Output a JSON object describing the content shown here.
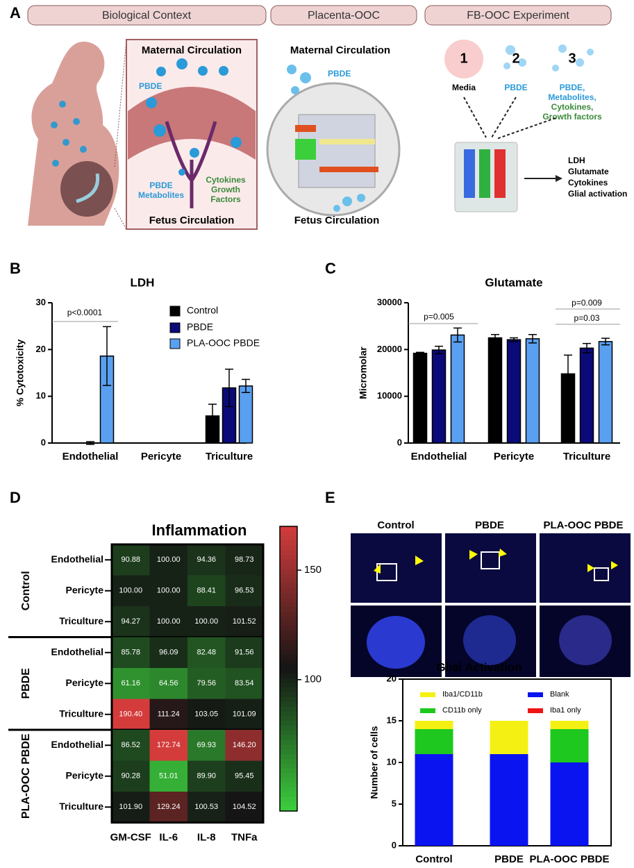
{
  "panel_labels": [
    "A",
    "B",
    "C",
    "D",
    "E"
  ],
  "panel_a": {
    "headers": [
      "Biological Context",
      "Placenta-OOC",
      "FB-OOC Experiment"
    ],
    "biological_context": {
      "top": "Maternal Circulation",
      "pbde": "PBDE",
      "metabolites": [
        "PBDE",
        "Metabolites"
      ],
      "cytokines": [
        "Cytokines",
        "Growth",
        "Factors"
      ],
      "bottom": "Fetus Circulation"
    },
    "placenta_ooc": {
      "top": "Maternal Circulation",
      "pbde": "PBDE",
      "bottom": "Fetus Circulation"
    },
    "fb_ooc": {
      "steps": [
        {
          "number": 1,
          "label": [
            "Media"
          ]
        },
        {
          "number": 2,
          "label": [
            "PBDE"
          ]
        },
        {
          "number": 3,
          "label": [
            "PBDE,",
            "Metabolites,",
            "Cytokines,",
            "Growth factors"
          ]
        }
      ],
      "readouts": [
        "LDH",
        "Glutamate",
        "Cytokines",
        "Glial activation"
      ]
    }
  },
  "panel_e": {
    "image_labels": [
      "Control",
      "PBDE",
      "PLA-OOC PBDE"
    ]
  },
  "chart_data": [
    {
      "type": "bar",
      "title": "LDH",
      "y_label": "% Cytotoxicity",
      "categories": [
        "Endothelial",
        "Pericyte",
        "Triculture"
      ],
      "series": [
        {
          "name": "Control",
          "color": "#000000",
          "values": [
            0,
            0,
            5.8
          ],
          "errors": [
            0,
            0,
            2.5
          ]
        },
        {
          "name": "PBDE",
          "color": "#0a0a78",
          "values": [
            0,
            0,
            11.8
          ],
          "errors": [
            0.3,
            0,
            4.0
          ]
        },
        {
          "name": "PLA-OOC PBDE",
          "color": "#5aa0f0",
          "values": [
            18.6,
            0,
            12.2
          ],
          "errors": [
            6.3,
            0,
            1.4
          ]
        }
      ],
      "ylim": [
        0,
        30
      ],
      "yticks": [
        0,
        10,
        20,
        30
      ],
      "annotations": [
        "p<0.0001"
      ]
    },
    {
      "type": "bar",
      "title": "Glutamate",
      "y_label": "Micromolar",
      "categories": [
        "Endothelial",
        "Pericyte",
        "Triculture"
      ],
      "series": [
        {
          "name": "Control",
          "color": "#000000",
          "values": [
            19200,
            22500,
            14800
          ],
          "errors": [
            200,
            700,
            4000
          ]
        },
        {
          "name": "PBDE",
          "color": "#0a0a78",
          "values": [
            19900,
            22100,
            20300
          ],
          "errors": [
            800,
            400,
            1000
          ]
        },
        {
          "name": "PLA-OOC PBDE",
          "color": "#5aa0f0",
          "values": [
            23100,
            22300,
            21700
          ],
          "errors": [
            1500,
            900,
            700
          ]
        }
      ],
      "ylim": [
        0,
        30000
      ],
      "yticks": [
        0,
        10000,
        20000,
        30000
      ],
      "annotations": [
        "p=0.005",
        "p=0.009",
        "p=0.03"
      ]
    },
    {
      "type": "heatmap",
      "title": "Inflammation",
      "columns": [
        "GM-CSF",
        "IL-6",
        "IL-8",
        "TNFa"
      ],
      "groups": [
        {
          "name": "Control",
          "rows": [
            "Endothelial",
            "Pericyte",
            "Triculture"
          ]
        },
        {
          "name": "PBDE",
          "rows": [
            "Endothelial",
            "Pericyte",
            "Triculture"
          ]
        },
        {
          "name": "PLA-OOC PBDE",
          "rows": [
            "Endothelial",
            "Pericyte",
            "Triculture"
          ]
        }
      ],
      "values": [
        [
          90.88,
          100,
          94.36,
          98.73
        ],
        [
          100,
          100,
          88.41,
          96.53
        ],
        [
          94.27,
          100,
          100,
          101.52
        ],
        [
          85.78,
          96.09,
          82.48,
          91.56
        ],
        [
          61.16,
          64.56,
          79.56,
          83.54
        ],
        [
          190.4,
          111.24,
          103.05,
          101.09
        ],
        [
          86.52,
          172.74,
          69.93,
          146.2
        ],
        [
          90.28,
          51.01,
          89.9,
          95.45
        ],
        [
          101.9,
          129.24,
          100.53,
          104.52
        ]
      ],
      "value_labels": [
        [
          "90.88",
          "100.00",
          "94.36",
          "98.73"
        ],
        [
          "100.00",
          "100.00",
          "88.41",
          "96.53"
        ],
        [
          "94.27",
          "100.00",
          "100.00",
          "101.52"
        ],
        [
          "85.78",
          "96.09",
          "82.48",
          "91.56"
        ],
        [
          "61.16",
          "64.56",
          "79.56",
          "83.54"
        ],
        [
          "190.40",
          "111.24",
          "103.05",
          "101.09"
        ],
        [
          "86.52",
          "172.74",
          "69.93",
          "146.20"
        ],
        [
          "90.28",
          "51.01",
          "89.90",
          "95.45"
        ],
        [
          "101.90",
          "129.24",
          "100.53",
          "104.52"
        ]
      ],
      "zlim": [
        40,
        170
      ],
      "zticks": [
        100,
        150
      ],
      "colors": [
        "#3ccf3c",
        "#141414",
        "#d43c3c"
      ]
    },
    {
      "type": "stacked_bar",
      "title": "Glial Activation",
      "y_label": "Number of cells",
      "categories": [
        "Control",
        "PBDE",
        "PLA-OOC PBDE"
      ],
      "series": [
        {
          "name": "Blank",
          "color": "#0a14f0",
          "values": [
            11,
            11,
            10
          ]
        },
        {
          "name": "CD11b only",
          "color": "#1ec81e",
          "values": [
            3,
            0,
            4
          ]
        },
        {
          "name": "Iba1 only",
          "color": "#f01414",
          "values": [
            0,
            0,
            0
          ]
        },
        {
          "name": "Iba1/CD11b",
          "color": "#f5f014",
          "values": [
            1,
            4,
            1
          ]
        }
      ],
      "ylim": [
        0,
        20
      ],
      "yticks": [
        0,
        5,
        10,
        15,
        20
      ]
    }
  ]
}
